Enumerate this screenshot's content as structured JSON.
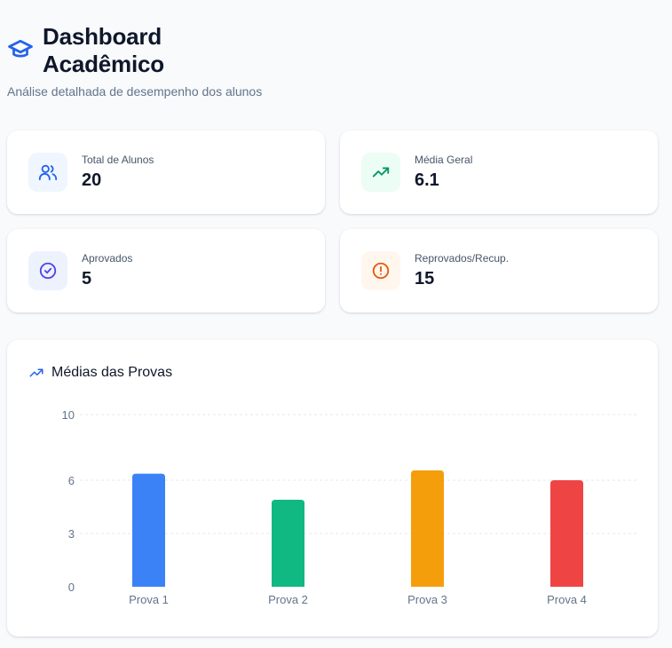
{
  "header": {
    "title": "Dashboard Acadêmico",
    "subtitle": "Análise detalhada de desempenho dos alunos",
    "icon": "graduation-cap-icon"
  },
  "stats": [
    {
      "label": "Total de Alunos",
      "value": "20",
      "icon": "users-icon",
      "color": "#2563eb",
      "bg": "#eff6ff"
    },
    {
      "label": "Média Geral",
      "value": "6.1",
      "icon": "trending-up-icon",
      "color": "#059669",
      "bg": "#ecfdf5"
    },
    {
      "label": "Aprovados",
      "value": "5",
      "icon": "check-circle-icon",
      "color": "#4f46e5",
      "bg": "#eef2ff"
    },
    {
      "label": "Reprovados/Recup.",
      "value": "15",
      "icon": "alert-circle-icon",
      "color": "#ea580c",
      "bg": "#fff7ed"
    }
  ],
  "chart_panel": {
    "title": "Médias das Provas",
    "icon": "trending-up-icon"
  },
  "chart_data": {
    "type": "bar",
    "title": "Médias das Provas",
    "categories": [
      "Prova 1",
      "Prova 2",
      "Prova 3",
      "Prova 4"
    ],
    "values": [
      6.4,
      4.9,
      6.6,
      6.0
    ],
    "colors": [
      "#3b82f6",
      "#10b981",
      "#f59e0b",
      "#ef4444"
    ],
    "yticks": [
      "0",
      "3",
      "6",
      "10"
    ],
    "ylim": [
      0,
      10
    ],
    "grid": true,
    "xlabel": "",
    "ylabel": ""
  }
}
